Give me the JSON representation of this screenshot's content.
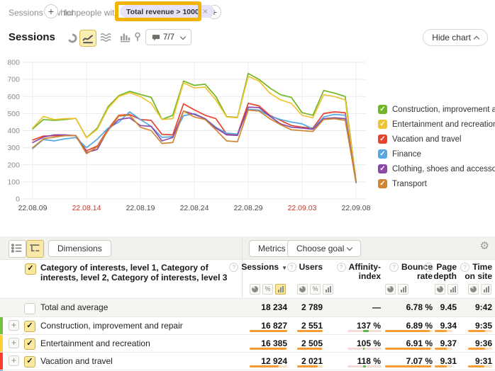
{
  "icons": {
    "plus": "+",
    "close": "×",
    "check": "✓",
    "gear": "⚙",
    "sort_desc": "▼",
    "help": "?",
    "percent": "%"
  },
  "filter_bar": {
    "prefix": "Sessions in which",
    "people": "for people wit",
    "tag": "Total revenue > 1000",
    "highlight_color": "#f2b400"
  },
  "chart_header": {
    "title": "Sessions",
    "segments": "7/7",
    "hide_chart": "Hide chart"
  },
  "chart_data": {
    "type": "line",
    "title": "Sessions",
    "x_tick_labels": [
      "22.08.09",
      "22.08.14",
      "22.08.19",
      "22.08.24",
      "22.08.29",
      "22.09.03",
      "22.09.08"
    ],
    "x_tick_is_red": [
      false,
      true,
      false,
      false,
      false,
      true,
      false
    ],
    "points_per_series": 31,
    "ylim": [
      0,
      800
    ],
    "y_tick_step": 100,
    "grid": true,
    "legend_position": "right",
    "series": [
      {
        "name": "Construction, improvement and repair",
        "color": "#72b626",
        "values": [
          410,
          465,
          460,
          465,
          472,
          360,
          415,
          540,
          605,
          630,
          612,
          595,
          465,
          490,
          690,
          665,
          672,
          600,
          482,
          478,
          735,
          700,
          650,
          610,
          595,
          505,
          490,
          635,
          620,
          600,
          110
        ]
      },
      {
        "name": "Entertainment and recreation",
        "color": "#f0c330",
        "values": [
          415,
          483,
          465,
          470,
          472,
          358,
          408,
          530,
          600,
          622,
          600,
          560,
          465,
          470,
          680,
          650,
          655,
          580,
          480,
          475,
          718,
          690,
          620,
          580,
          560,
          490,
          475,
          610,
          600,
          580,
          105
        ]
      },
      {
        "name": "Vacation and travel",
        "color": "#e8432d",
        "values": [
          345,
          368,
          370,
          372,
          372,
          282,
          310,
          410,
          490,
          495,
          465,
          460,
          378,
          375,
          557,
          522,
          490,
          470,
          380,
          378,
          560,
          545,
          490,
          460,
          430,
          420,
          415,
          500,
          510,
          505,
          100
        ]
      },
      {
        "name": "Finance",
        "color": "#55a7e3",
        "values": [
          295,
          348,
          340,
          352,
          360,
          300,
          350,
          415,
          450,
          510,
          465,
          425,
          360,
          365,
          487,
          500,
          470,
          420,
          385,
          380,
          525,
          520,
          485,
          465,
          450,
          440,
          410,
          480,
          495,
          490,
          95
        ]
      },
      {
        "name": "Clothing, shoes and accessories",
        "color": "#8a4ba8",
        "values": [
          330,
          362,
          375,
          375,
          370,
          272,
          290,
          405,
          465,
          475,
          430,
          425,
          340,
          360,
          515,
          495,
          470,
          415,
          375,
          372,
          537,
          535,
          485,
          440,
          420,
          415,
          408,
          470,
          475,
          470,
          98
        ]
      },
      {
        "name": "Transport",
        "color": "#cf8532",
        "values": [
          300,
          352,
          362,
          370,
          370,
          265,
          305,
          400,
          485,
          490,
          420,
          400,
          325,
          330,
          515,
          480,
          465,
          405,
          340,
          335,
          520,
          515,
          470,
          435,
          405,
          400,
          395,
          465,
          470,
          460,
          100
        ]
      }
    ]
  },
  "table": {
    "toolbar": {
      "dimensions": "Dimensions",
      "metrics": "Metrics",
      "choose_goal": "Choose goal"
    },
    "dimension_title": "Category of interests, level 1, Category of interests, level 2, Category of interests, level 3",
    "columns": [
      {
        "key": "sessions",
        "label_lines": [
          "Sessions"
        ],
        "sorted_desc": true,
        "toggles": [
          "pie",
          "percent",
          "bar"
        ],
        "selected_toggle": "bar"
      },
      {
        "key": "users",
        "label_lines": [
          "Users"
        ],
        "sorted_desc": false,
        "toggles": [
          "pie",
          "percent",
          "bar"
        ],
        "selected_toggle": null
      },
      {
        "key": "affinity-index",
        "label_lines": [
          "Affinity-",
          "index"
        ],
        "sorted_desc": false,
        "toggles": [],
        "selected_toggle": null
      },
      {
        "key": "bounce-rate",
        "label_lines": [
          "Bounce",
          "rate"
        ],
        "sorted_desc": false,
        "toggles": [
          "pie",
          "bar"
        ],
        "selected_toggle": null
      },
      {
        "key": "page-depth",
        "label_lines": [
          "Page",
          "depth"
        ],
        "sorted_desc": false,
        "toggles": [
          "pie",
          "bar"
        ],
        "selected_toggle": null
      },
      {
        "key": "time-on-site",
        "label_lines": [
          "Time",
          "on site"
        ],
        "sorted_desc": false,
        "toggles": [
          "pie",
          "bar"
        ],
        "selected_toggle": null
      }
    ],
    "rows": [
      {
        "kind": "total",
        "label": "Total and average",
        "checked": false,
        "cells": [
          "18 234",
          "2 789",
          "—",
          "6.78 %",
          "9.45",
          "9:42"
        ]
      },
      {
        "kind": "category",
        "stripe": "#71c040",
        "label": "Construction, improvement and repair",
        "checked": true,
        "cells": [
          "16 827",
          "2 551",
          "137 %",
          "6.89 %",
          "9.34",
          "9:35"
        ],
        "nums": [
          16827,
          2551,
          137,
          6.89,
          9.34,
          575
        ]
      },
      {
        "kind": "category",
        "stripe": "#ffcf33",
        "label": "Entertainment and recreation",
        "checked": true,
        "cells": [
          "16 385",
          "2 505",
          "105 %",
          "6.91 %",
          "9.37",
          "9:36"
        ],
        "nums": [
          16385,
          2505,
          105,
          6.91,
          9.37,
          576
        ]
      },
      {
        "kind": "category",
        "stripe": "#ff3d2e",
        "label": "Vacation and travel",
        "checked": true,
        "cells": [
          "12 924",
          "2 021",
          "118 %",
          "7.07 %",
          "9.31",
          "9:31"
        ],
        "nums": [
          12924,
          2021,
          118,
          7.07,
          9.31,
          571
        ]
      }
    ],
    "next_row_stripe": "#41b6e8"
  }
}
